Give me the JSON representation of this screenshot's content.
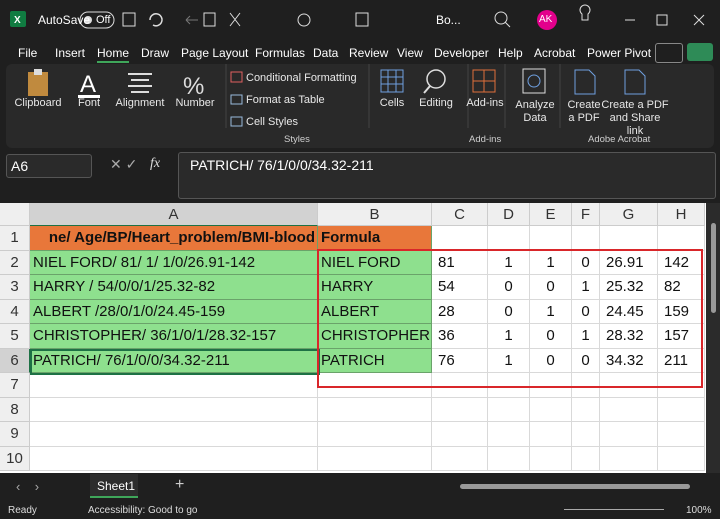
{
  "title_bar": {
    "autosave": "AutoSave",
    "toggle": "Off",
    "filename": "Bo...",
    "avatar": "AK"
  },
  "menu": [
    "File",
    "Insert",
    "Home",
    "Draw",
    "Page Layout",
    "Formulas",
    "Data",
    "Review",
    "View",
    "Developer",
    "Help",
    "Acrobat",
    "Power Pivot"
  ],
  "ribbon": {
    "clipboard": "Clipboard",
    "font": "Font",
    "alignment": "Alignment",
    "number": "Number",
    "conditional_formatting": "Conditional Formatting",
    "format_as_table": "Format as Table",
    "cell_styles": "Cell Styles",
    "styles": "Styles",
    "cells": "Cells",
    "editing": "Editing",
    "add_ins": "Add-ins",
    "add_ins_group": "Add-ins",
    "analyze_data": "Analyze Data",
    "create_pdf": "Create a PDF",
    "create_pdf_share": "Create a PDF and Share link",
    "adobe_acrobat": "Adobe Acrobat"
  },
  "formula_bar": {
    "name_box": "A6",
    "fx": "fx",
    "content": "PATRICH/ 76/1/0/0/34.32-211"
  },
  "sheet": {
    "columns": [
      "A",
      "B",
      "C",
      "D",
      "E",
      "F",
      "G",
      "H"
    ],
    "rows": [
      "1",
      "2",
      "3",
      "4",
      "5",
      "6",
      "7",
      "8",
      "9",
      "10"
    ],
    "cells": [
      [
        "ne/ Age/BP/Heart_problem/BMI-blood",
        "Formula"
      ],
      [
        "NIEL FORD/ 81/ 1/ 1/0/26.91-142",
        "NIEL FORD",
        "81",
        "1",
        "1",
        "0",
        "26.91",
        "142"
      ],
      [
        "HARRY / 54/0/0/1/25.32-82",
        "HARRY",
        "54",
        "0",
        "0",
        "1",
        "25.32",
        "82"
      ],
      [
        "ALBERT /28/0/1/0/24.45-159",
        "ALBERT",
        "28",
        "0",
        "1",
        "0",
        "24.45",
        "159"
      ],
      [
        "CHRISTOPHER/ 36/1/0/1/28.32-157",
        "CHRISTOPHER",
        "36",
        "1",
        "0",
        "1",
        "28.32",
        "157"
      ],
      [
        "PATRICH/ 76/1/0/0/34.32-211",
        "PATRICH",
        "76",
        "1",
        "0",
        "0",
        "34.32",
        "211"
      ]
    ]
  },
  "sheet_tabs": {
    "active": "Sheet1"
  },
  "status_bar": {
    "ready": "Ready",
    "accessibility": "Accessibility: Good to go",
    "zoom": "100%"
  }
}
